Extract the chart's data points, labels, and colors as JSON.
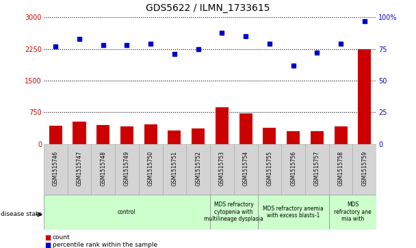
{
  "title": "GDS5622 / ILMN_1733615",
  "samples": [
    "GSM1515746",
    "GSM1515747",
    "GSM1515748",
    "GSM1515749",
    "GSM1515750",
    "GSM1515751",
    "GSM1515752",
    "GSM1515753",
    "GSM1515754",
    "GSM1515755",
    "GSM1515756",
    "GSM1515757",
    "GSM1515758",
    "GSM1515759"
  ],
  "counts": [
    430,
    530,
    450,
    420,
    460,
    320,
    360,
    870,
    720,
    380,
    300,
    300,
    420,
    2250
  ],
  "percentiles": [
    77,
    83,
    78,
    78,
    79,
    71,
    75,
    88,
    85,
    79,
    62,
    72,
    79,
    97
  ],
  "ylim_left": [
    0,
    3000
  ],
  "ylim_right": [
    0,
    100
  ],
  "yticks_left": [
    0,
    750,
    1500,
    2250,
    3000
  ],
  "yticks_right": [
    0,
    25,
    50,
    75,
    100
  ],
  "disease_groups": [
    {
      "label": "control",
      "start": 0,
      "end": 7,
      "color": "#ccffcc"
    },
    {
      "label": "MDS refractory\ncytopenia with\nmultilineage dysplasia",
      "start": 7,
      "end": 9,
      "color": "#ccffcc"
    },
    {
      "label": "MDS refractory anemia\nwith excess blasts-1",
      "start": 9,
      "end": 12,
      "color": "#ccffcc"
    },
    {
      "label": "MDS\nrefractory ane\nmia with",
      "start": 12,
      "end": 14,
      "color": "#ccffcc"
    }
  ],
  "bar_color": "#cc0000",
  "dot_color": "#0000cc",
  "bar_width": 0.55,
  "title_fontsize": 10,
  "tick_fontsize": 7,
  "sample_fontsize": 5.5,
  "label_fontsize": 7,
  "background_color": "#ffffff",
  "plot_bg_color": "#ffffff",
  "grid_color": "#000000",
  "left_tick_color": "#cc0000",
  "right_tick_color": "#0000cc",
  "sample_box_color": "#d4d4d4",
  "disease_label_fontsize": 5.5
}
